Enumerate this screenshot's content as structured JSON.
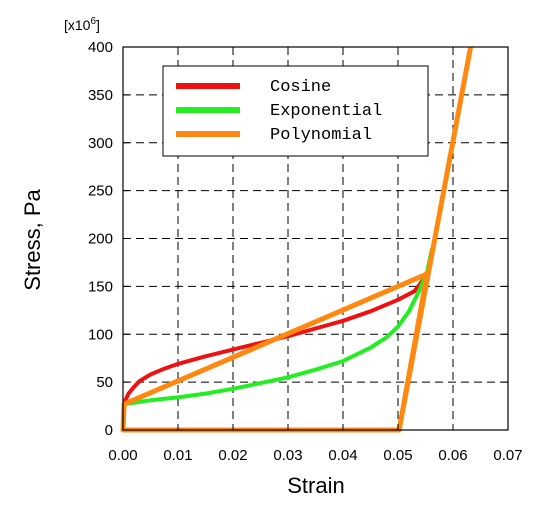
{
  "chart_data": {
    "type": "line",
    "xlabel": "Strain",
    "ylabel": "Stress, Pa",
    "y_multiplier": {
      "base": "[x10",
      "exponent": "6",
      "close": "]"
    },
    "xlim": [
      0,
      0.07
    ],
    "ylim": [
      0,
      400
    ],
    "x_ticks": [
      "0.00",
      "0.01",
      "0.02",
      "0.03",
      "0.04",
      "0.05",
      "0.06",
      "0.07"
    ],
    "y_ticks": [
      "0",
      "50",
      "100",
      "150",
      "200",
      "250",
      "300",
      "350",
      "400"
    ],
    "grid": "dashed",
    "legend_position": "top-left",
    "series": [
      {
        "name": "Cosine",
        "color": "#ee1111",
        "x": [
          0.0,
          0.0002,
          0.0005,
          0.001,
          0.002,
          0.003,
          0.005,
          0.0075,
          0.01,
          0.015,
          0.02,
          0.025,
          0.03,
          0.035,
          0.04,
          0.045,
          0.05,
          0.053,
          0.055
        ],
        "y": [
          0,
          28,
          32,
          38,
          45,
          51,
          58,
          64,
          69,
          77,
          84,
          91,
          98,
          106,
          114,
          124,
          136,
          145,
          160
        ]
      },
      {
        "name": "Exponential",
        "color": "#22ee22",
        "x": [
          0.0,
          0.0002,
          0.005,
          0.01,
          0.015,
          0.02,
          0.025,
          0.03,
          0.035,
          0.04,
          0.045,
          0.048,
          0.05,
          0.052,
          0.054,
          0.0553,
          0.0562
        ],
        "y": [
          0,
          27,
          31,
          34,
          38,
          43,
          49,
          55,
          63,
          72,
          86,
          97,
          108,
          124,
          147,
          165,
          190
        ]
      },
      {
        "name": "Polynomial",
        "color": "#ff8811",
        "x": [
          0.0,
          0.0002,
          0.0002,
          0.0553,
          0.0502,
          0.0,
          0.0,
          0.0502,
          0.0632
        ],
        "y": [
          0,
          27,
          27,
          163,
          0,
          0,
          0,
          0,
          400
        ]
      }
    ]
  }
}
